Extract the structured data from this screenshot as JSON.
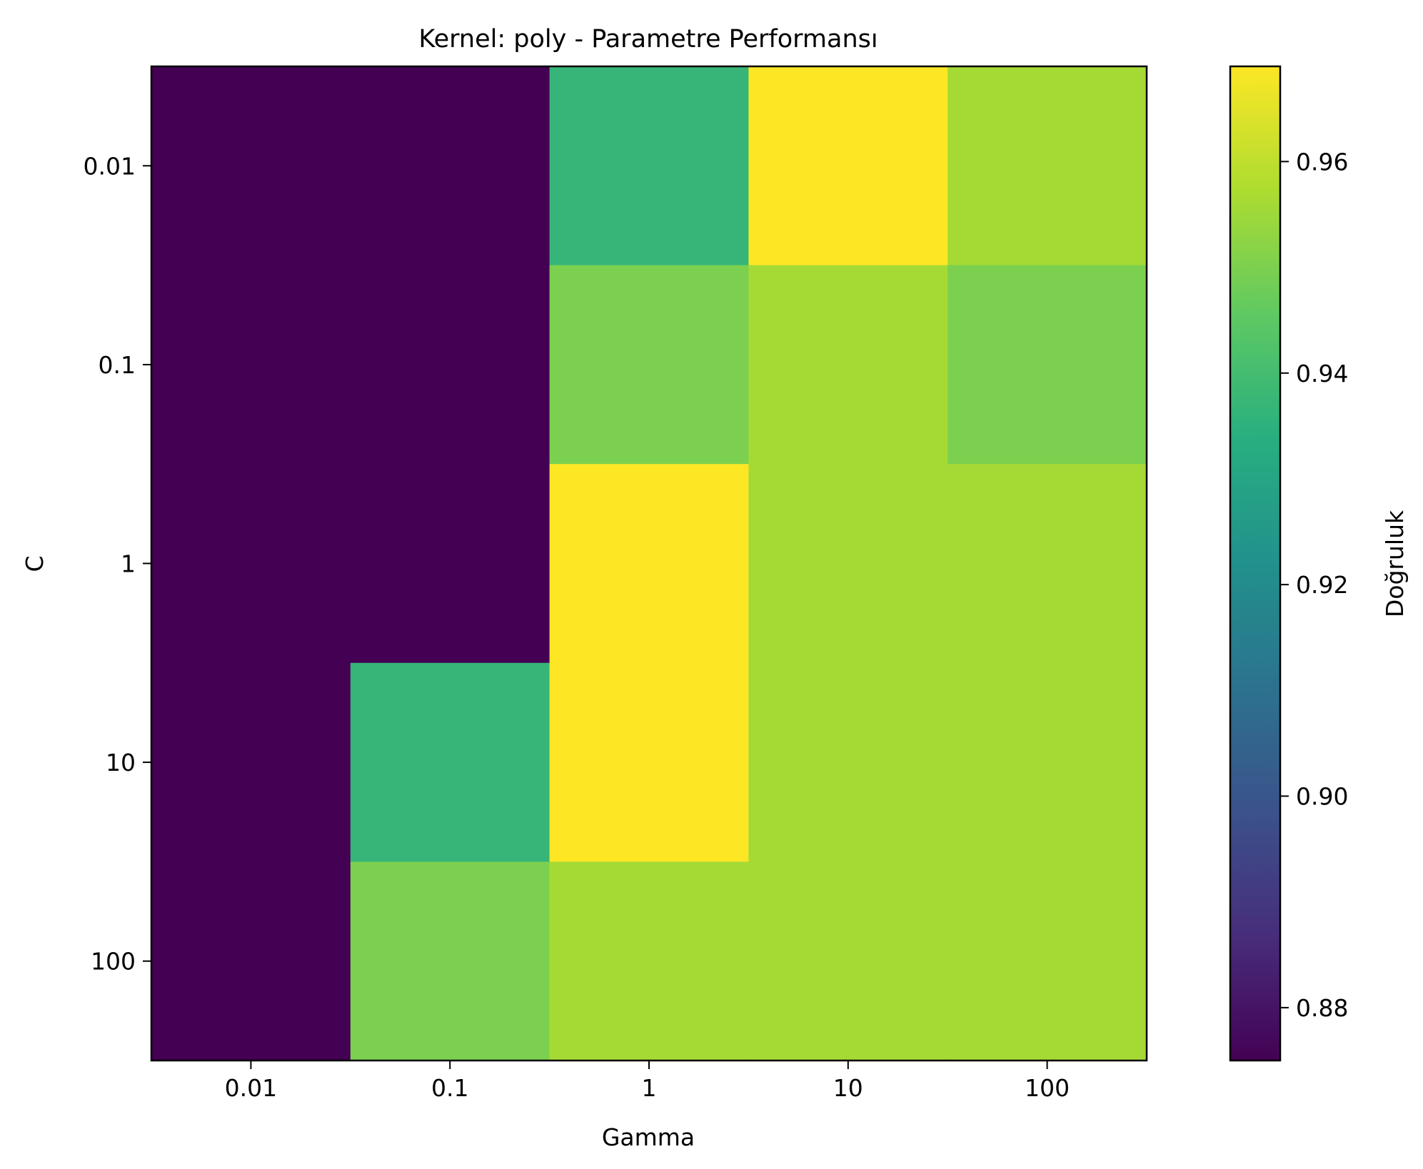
{
  "chart_data": {
    "type": "heatmap",
    "title": "Kernel: poly - Parametre Performansı",
    "xlabel": "Gamma",
    "ylabel": "C",
    "x_categories": [
      "0.01",
      "0.1",
      "1",
      "10",
      "100"
    ],
    "y_categories": [
      "0.01",
      "0.1",
      "1",
      "10",
      "100"
    ],
    "values": [
      [
        0.875,
        0.875,
        0.937,
        0.969,
        0.956
      ],
      [
        0.875,
        0.875,
        0.95,
        0.956,
        0.95
      ],
      [
        0.875,
        0.875,
        0.969,
        0.956,
        0.956
      ],
      [
        0.875,
        0.937,
        0.969,
        0.956,
        0.956
      ],
      [
        0.875,
        0.95,
        0.956,
        0.956,
        0.956
      ]
    ],
    "colorbar": {
      "label": "Doğruluk",
      "range": [
        0.875,
        0.969
      ],
      "ticks": [
        "0.88",
        "0.90",
        "0.92",
        "0.94",
        "0.96"
      ],
      "colormap": "viridis"
    },
    "grid": false
  }
}
